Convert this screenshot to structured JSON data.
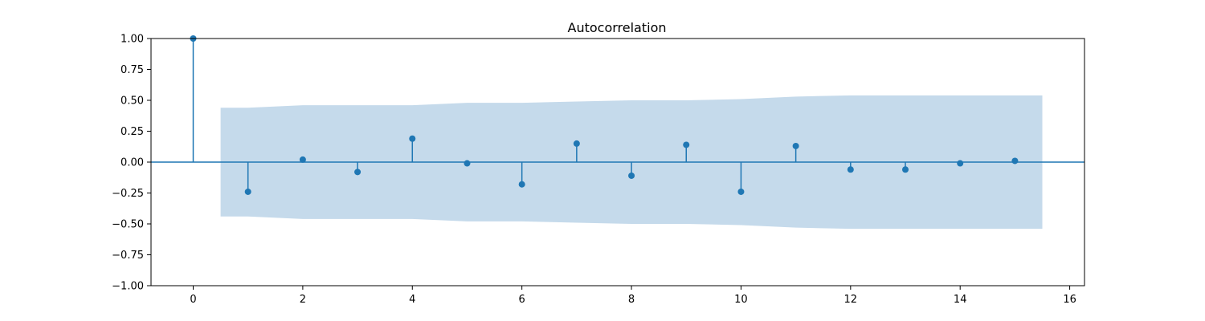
{
  "chart_data": {
    "type": "scatter",
    "subtype": "stem",
    "title": "Autocorrelation",
    "xlabel": "",
    "ylabel": "",
    "xlim": [
      -0.77,
      16.27
    ],
    "ylim": [
      -1.0,
      1.0
    ],
    "x_ticks": [
      0,
      2,
      4,
      6,
      8,
      10,
      12,
      14,
      16
    ],
    "x_tick_labels": [
      "0",
      "2",
      "4",
      "6",
      "8",
      "10",
      "12",
      "14",
      "16"
    ],
    "y_ticks": [
      1.0,
      0.75,
      0.5,
      0.25,
      0.0,
      -0.25,
      -0.5,
      -0.75,
      -1.0
    ],
    "y_tick_labels": [
      "1.00",
      "0.75",
      "0.50",
      "0.25",
      "0.00",
      "−0.25",
      "−0.50",
      "−0.75",
      "−1.00"
    ],
    "grid": false,
    "legend": "none",
    "series": [
      {
        "lags": [
          0,
          1,
          2,
          3,
          4,
          5,
          6,
          7,
          8,
          9,
          10,
          11,
          12,
          13,
          14,
          15
        ],
        "values": [
          1.0,
          -0.24,
          0.02,
          -0.08,
          0.19,
          -0.01,
          -0.18,
          0.15,
          -0.11,
          0.14,
          -0.24,
          0.13,
          -0.06,
          -0.06,
          -0.01,
          0.01
        ]
      }
    ],
    "confidence_band": {
      "lags": [
        0.5,
        1,
        2,
        3,
        4,
        5,
        6,
        7,
        8,
        9,
        10,
        11,
        12,
        13,
        14,
        15,
        15.5
      ],
      "upper": [
        0.44,
        0.44,
        0.46,
        0.46,
        0.46,
        0.48,
        0.48,
        0.49,
        0.5,
        0.5,
        0.51,
        0.53,
        0.54,
        0.54,
        0.54,
        0.54,
        0.54
      ]
    },
    "colors": {
      "series": "#1f77b4",
      "band": "#c5daeb",
      "axes": "#000000",
      "background": "#ffffff"
    }
  }
}
